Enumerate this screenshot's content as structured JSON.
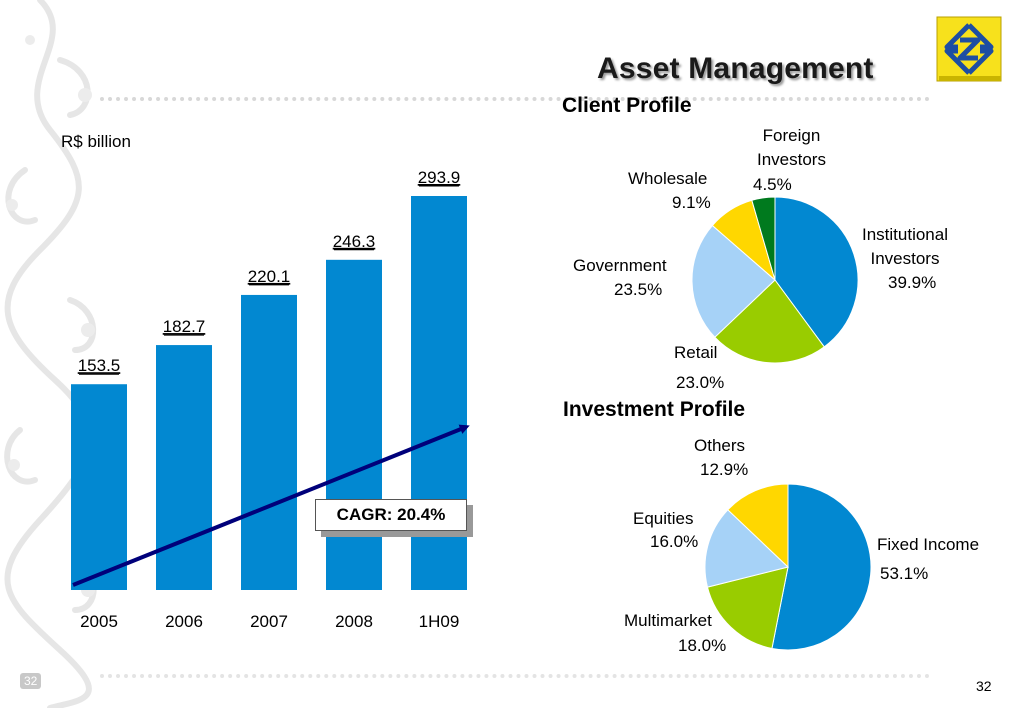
{
  "slide": {
    "title": "Asset Management",
    "unit_label": "R$ billion",
    "cagr_label": "CAGR: 20.4%",
    "page_number": "32",
    "page_number_small": "32",
    "colors": {
      "bar": "#0288d1",
      "arrow": "#00007a",
      "logo_yellow": "#f7e11c",
      "logo_blue": "#1d4ea3"
    },
    "logo_icon": "banco-do-brasil-logo-icon"
  },
  "chart_data": [
    {
      "type": "bar",
      "categories": [
        "2005",
        "2006",
        "2007",
        "2008",
        "1H09"
      ],
      "values": [
        153.5,
        182.7,
        220.1,
        246.3,
        293.9
      ],
      "value_labels": [
        "153.5",
        "182.7",
        "220.1",
        "246.3",
        "293.9"
      ],
      "title": "",
      "ylabel": "R$ billion",
      "ylim": [
        0,
        300
      ],
      "grid": false,
      "annotation": "CAGR: 20.4%"
    },
    {
      "type": "pie",
      "title": "Client Profile",
      "slices": [
        {
          "name": "Institutional Investors",
          "value": 39.9,
          "label": "39.9%",
          "color": "#0288d1"
        },
        {
          "name": "Retail",
          "value": 23.0,
          "label": "23.0%",
          "color": "#99cc00"
        },
        {
          "name": "Government",
          "value": 23.5,
          "label": "23.5%",
          "color": "#a6d2f7"
        },
        {
          "name": "Wholesale",
          "value": 9.1,
          "label": "9.1%",
          "color": "#ffd700"
        },
        {
          "name": "Foreign Investors",
          "value": 4.5,
          "label": "4.5%",
          "color": "#007a1e"
        }
      ]
    },
    {
      "type": "pie",
      "title": "Investment Profile",
      "slices": [
        {
          "name": "Fixed Income",
          "value": 53.1,
          "label": "53.1%",
          "color": "#0288d1"
        },
        {
          "name": "Multimarket",
          "value": 18.0,
          "label": "18.0%",
          "color": "#99cc00"
        },
        {
          "name": "Equities",
          "value": 16.0,
          "label": "16.0%",
          "color": "#a6d2f7"
        },
        {
          "name": "Others",
          "value": 12.9,
          "label": "12.9%",
          "color": "#ffd700"
        }
      ]
    }
  ],
  "pie_label_text": {
    "client": {
      "foreign": [
        "Foreign",
        "Investors"
      ],
      "wholesale": "Wholesale",
      "institutional": [
        "Institutional",
        "Investors"
      ],
      "government": "Government",
      "retail": "Retail"
    },
    "investment": {
      "others": "Others",
      "equities": "Equities",
      "fixed": "Fixed Income",
      "multimarket": "Multimarket"
    }
  }
}
